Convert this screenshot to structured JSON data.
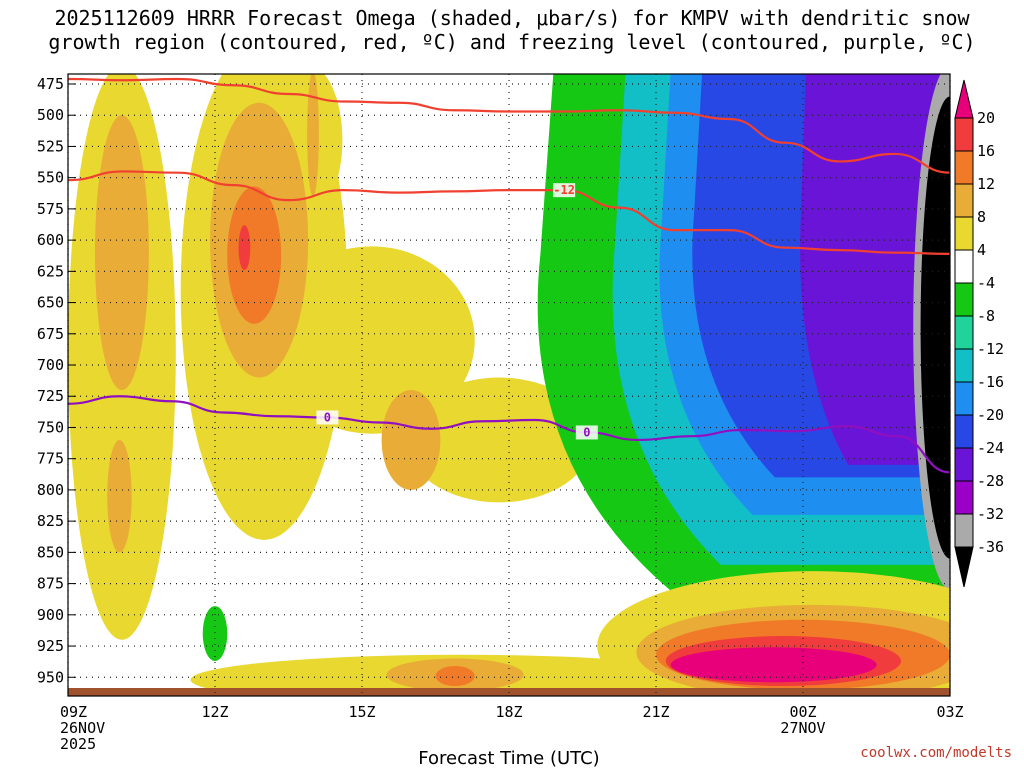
{
  "chart_data": {
    "type": "heatmap",
    "title": "2025112609 HRRR Forecast Omega (shaded, μbar/s) for KMPV with dendritic snow\ngrowth region (contoured, red, ºC) and freezing level (contoured, purple, ºC)",
    "xlabel": "Forecast Time (UTC)",
    "ylabel": "",
    "credit": "coolwx.com/modelts",
    "x_ticks": [
      {
        "label": "09Z",
        "sub": [
          "26NOV",
          "2025"
        ],
        "hour": 0
      },
      {
        "label": "12Z",
        "sub": [],
        "hour": 3
      },
      {
        "label": "15Z",
        "sub": [],
        "hour": 6
      },
      {
        "label": "18Z",
        "sub": [],
        "hour": 9
      },
      {
        "label": "21Z",
        "sub": [],
        "hour": 12
      },
      {
        "label": "00Z",
        "sub": [
          "27NOV"
        ],
        "hour": 15
      },
      {
        "label": "03Z",
        "sub": [],
        "hour": 18
      }
    ],
    "y_ticks": [
      475,
      500,
      525,
      550,
      575,
      600,
      625,
      650,
      675,
      700,
      725,
      750,
      775,
      800,
      825,
      850,
      875,
      900,
      925,
      950
    ],
    "ylim": [
      965,
      467
    ],
    "xlim": [
      0,
      18
    ],
    "colorbar": {
      "labels": [
        "20",
        "16",
        "12",
        "8",
        "4",
        "-4",
        "-8",
        "-12",
        "-16",
        "-20",
        "-24",
        "-28",
        "-32",
        "-36"
      ],
      "colors": [
        "#e8007a",
        "#f03c3c",
        "#f07a28",
        "#e9ac36",
        "#e8d830",
        "#ffffff",
        "#14c814",
        "#1fd39b",
        "#12bfc6",
        "#1e8ff0",
        "#2848e6",
        "#6a14d8",
        "#9a00c8",
        "#aaaaaa",
        "#000000"
      ]
    },
    "red_contours": [
      {
        "label": "",
        "pressure": [
          471,
          472,
          471,
          476,
          483,
          489,
          490,
          496,
          497,
          497,
          496,
          498,
          503,
          522,
          537,
          531,
          546
        ]
      },
      {
        "label": "-12",
        "pressure": [
          552,
          545,
          546,
          556,
          568,
          560,
          562,
          561,
          560,
          560,
          574,
          592,
          592,
          606,
          608,
          610,
          611
        ]
      }
    ],
    "purple_contour": {
      "label": "0",
      "pressure": [
        731,
        725,
        729,
        738,
        741,
        742,
        746,
        751,
        745,
        744,
        754,
        760,
        757,
        752,
        753,
        749,
        757,
        786
      ]
    },
    "omega_fields": [
      {
        "value": 6,
        "shape": "ellipse",
        "t": 1.1,
        "p": 690,
        "rt": 1.1,
        "rp": 230
      },
      {
        "value": 10,
        "shape": "ellipse",
        "t": 1.1,
        "p": 610,
        "rt": 0.55,
        "rp": 110
      },
      {
        "value": 10,
        "shape": "ellipse",
        "t": 1.05,
        "p": 805,
        "rt": 0.25,
        "rp": 45
      },
      {
        "value": 6,
        "shape": "ellipse",
        "t": 4.0,
        "p": 640,
        "rt": 1.7,
        "rp": 200
      },
      {
        "value": 6,
        "shape": "ellipse",
        "t": 4.9,
        "p": 520,
        "rt": 0.7,
        "rp": 60
      },
      {
        "value": 6,
        "shape": "ellipse",
        "t": 6.2,
        "p": 680,
        "rt": 2.1,
        "rp": 75
      },
      {
        "value": 6,
        "shape": "ellipse",
        "t": 8.8,
        "p": 760,
        "rt": 1.9,
        "rp": 50
      },
      {
        "value": 10,
        "shape": "ellipse",
        "t": 3.9,
        "p": 600,
        "rt": 1.0,
        "rp": 110
      },
      {
        "value": 14,
        "shape": "ellipse",
        "t": 3.8,
        "p": 612,
        "rt": 0.55,
        "rp": 55
      },
      {
        "value": 18,
        "shape": "ellipse",
        "t": 3.6,
        "p": 606,
        "rt": 0.12,
        "rp": 18
      },
      {
        "value": 10,
        "shape": "ellipse",
        "t": 5.0,
        "p": 515,
        "rt": 0.12,
        "rp": 50
      },
      {
        "value": 10,
        "shape": "ellipse",
        "t": 7.0,
        "p": 760,
        "rt": 0.6,
        "rp": 40
      },
      {
        "value": -6,
        "shape": "ellipse",
        "t": 3.0,
        "p": 915,
        "rt": 0.25,
        "rp": 22
      },
      {
        "value": -6,
        "shape": "band",
        "t0": 9.2,
        "t1": 18.0,
        "p_top": 467,
        "p_bot": 880
      },
      {
        "value": -14,
        "shape": "band",
        "t0": 10.8,
        "t1": 18.0,
        "p_top": 467,
        "p_bot": 860
      },
      {
        "value": -18,
        "shape": "band",
        "t0": 11.8,
        "t1": 18.0,
        "p_top": 467,
        "p_bot": 820
      },
      {
        "value": -22,
        "shape": "band",
        "t0": 12.5,
        "t1": 18.0,
        "p_top": 467,
        "p_bot": 790
      },
      {
        "value": -26,
        "shape": "band",
        "t0": 14.8,
        "t1": 18.0,
        "p_top": 467,
        "p_bot": 780
      },
      {
        "value": -34,
        "shape": "ellipse",
        "t": 18.0,
        "p": 670,
        "rt": 0.75,
        "rp": 210
      },
      {
        "value": -40,
        "shape": "ellipse",
        "t": 18.0,
        "p": 670,
        "rt": 0.6,
        "rp": 185
      },
      {
        "value": 6,
        "shape": "ellipse",
        "t": 8.0,
        "p": 952,
        "rt": 5.5,
        "rp": 20
      },
      {
        "value": 6,
        "shape": "ellipse",
        "t": 15.2,
        "p": 925,
        "rt": 4.4,
        "rp": 60
      },
      {
        "value": 10,
        "shape": "ellipse",
        "t": 15.2,
        "p": 930,
        "rt": 3.6,
        "rp": 38
      },
      {
        "value": 14,
        "shape": "ellipse",
        "t": 15.0,
        "p": 932,
        "rt": 3.0,
        "rp": 28
      },
      {
        "value": 18,
        "shape": "ellipse",
        "t": 14.6,
        "p": 937,
        "rt": 2.4,
        "rp": 20
      },
      {
        "value": 22,
        "shape": "ellipse",
        "t": 14.4,
        "p": 940,
        "rt": 2.1,
        "rp": 14
      },
      {
        "value": 10,
        "shape": "ellipse",
        "t": 7.9,
        "p": 948,
        "rt": 1.4,
        "rp": 13
      },
      {
        "value": 14,
        "shape": "ellipse",
        "t": 7.9,
        "p": 949,
        "rt": 0.4,
        "rp": 8
      }
    ]
  }
}
